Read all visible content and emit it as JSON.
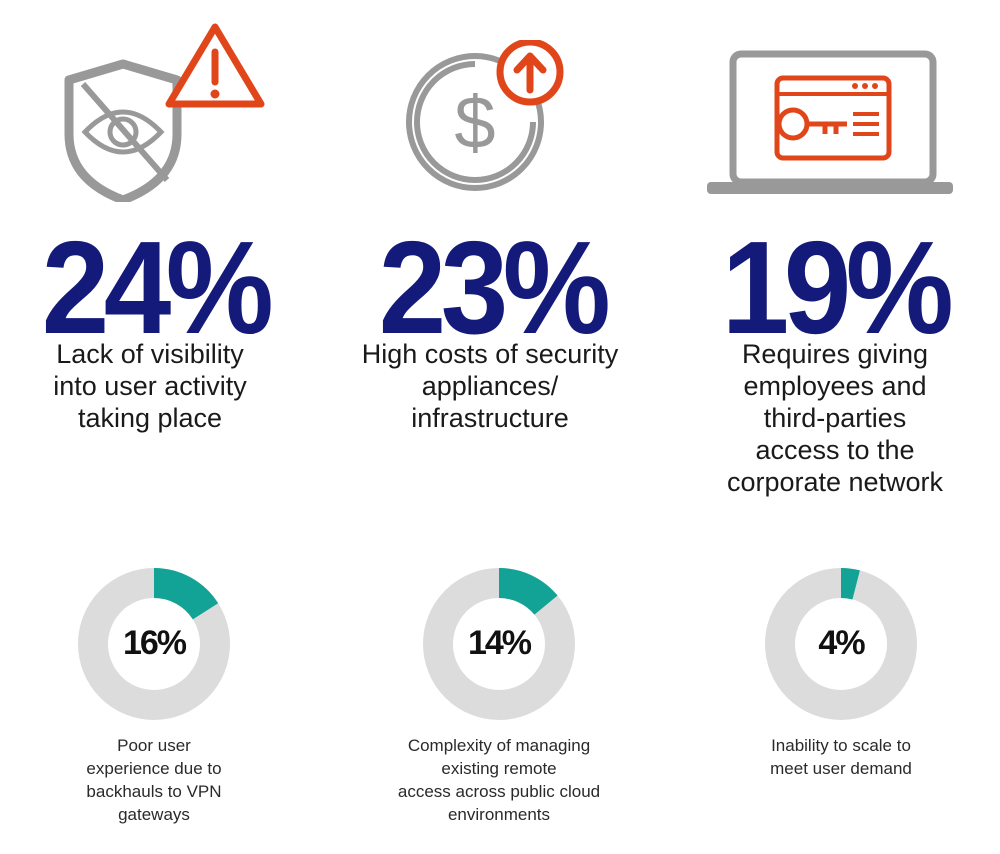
{
  "colors": {
    "accent": "#e0461a",
    "navy": "#141a7a",
    "teal": "#12a396",
    "track": "#dcdcdc",
    "icon_gray": "#999999"
  },
  "top_stats": [
    {
      "value": "24%",
      "desc": [
        "Lack of visibility",
        "into user activity",
        "taking place"
      ],
      "icon": "shield-eye-warning-icon"
    },
    {
      "value": "23%",
      "desc": [
        "High costs of security",
        "appliances/",
        "infrastructure"
      ],
      "icon": "dollar-coin-up-arrow-icon"
    },
    {
      "value": "19%",
      "desc": [
        "Requires giving",
        "employees and",
        "third-parties",
        "access to the",
        "corporate network"
      ],
      "icon": "laptop-key-icon"
    }
  ],
  "chart_data": {
    "type": "pie",
    "series": [
      {
        "value": 16,
        "label": "16%",
        "desc": [
          "Poor user",
          "experience due to",
          "backhauls to VPN",
          "gateways"
        ]
      },
      {
        "value": 14,
        "label": "14%",
        "desc": [
          "Complexity of managing",
          "existing remote",
          "access across public cloud",
          "environments"
        ]
      },
      {
        "value": 4,
        "label": "4%",
        "desc": [
          "Inability to scale to",
          "meet user demand"
        ]
      }
    ]
  }
}
